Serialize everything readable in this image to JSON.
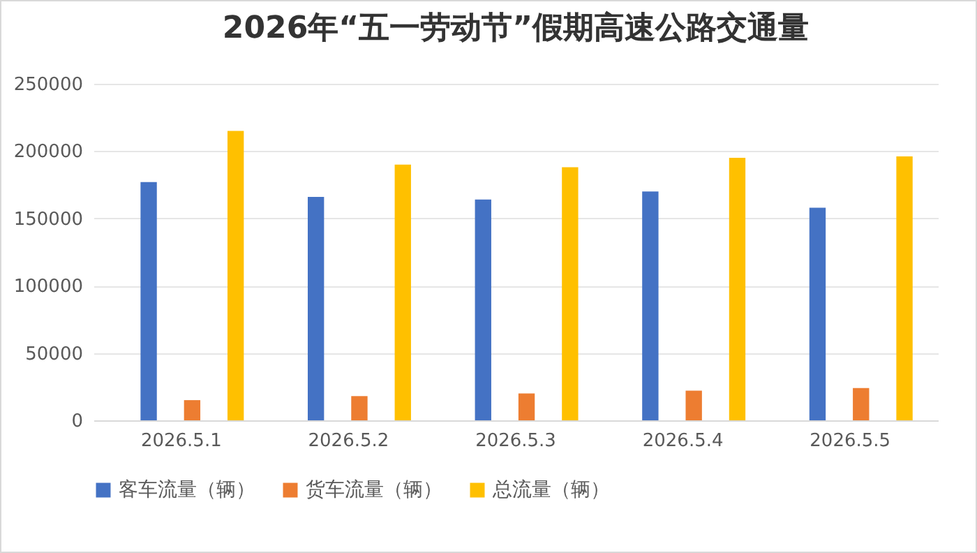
{
  "chart_data": {
    "type": "bar",
    "title": "2026年“五一劳动节”假期高速公路交通量",
    "categories": [
      "2026.5.1",
      "2026.5.2",
      "2026.5.3",
      "2026.5.4",
      "2026.5.5"
    ],
    "series": [
      {
        "name": "客车流量（辆）",
        "color": "#4472c4",
        "values": [
          177000,
          166000,
          164000,
          170000,
          158000
        ]
      },
      {
        "name": "货车流量（辆）",
        "color": "#ed7d31",
        "values": [
          15000,
          18000,
          20000,
          22000,
          24000
        ]
      },
      {
        "name": "总流量（辆）",
        "color": "#ffc000",
        "values": [
          215000,
          190000,
          188000,
          195000,
          196000
        ]
      }
    ],
    "ylim": [
      0,
      250000
    ],
    "yticks": [
      0,
      50000,
      100000,
      150000,
      200000,
      250000
    ],
    "grid": "y",
    "legend": "bottom"
  }
}
